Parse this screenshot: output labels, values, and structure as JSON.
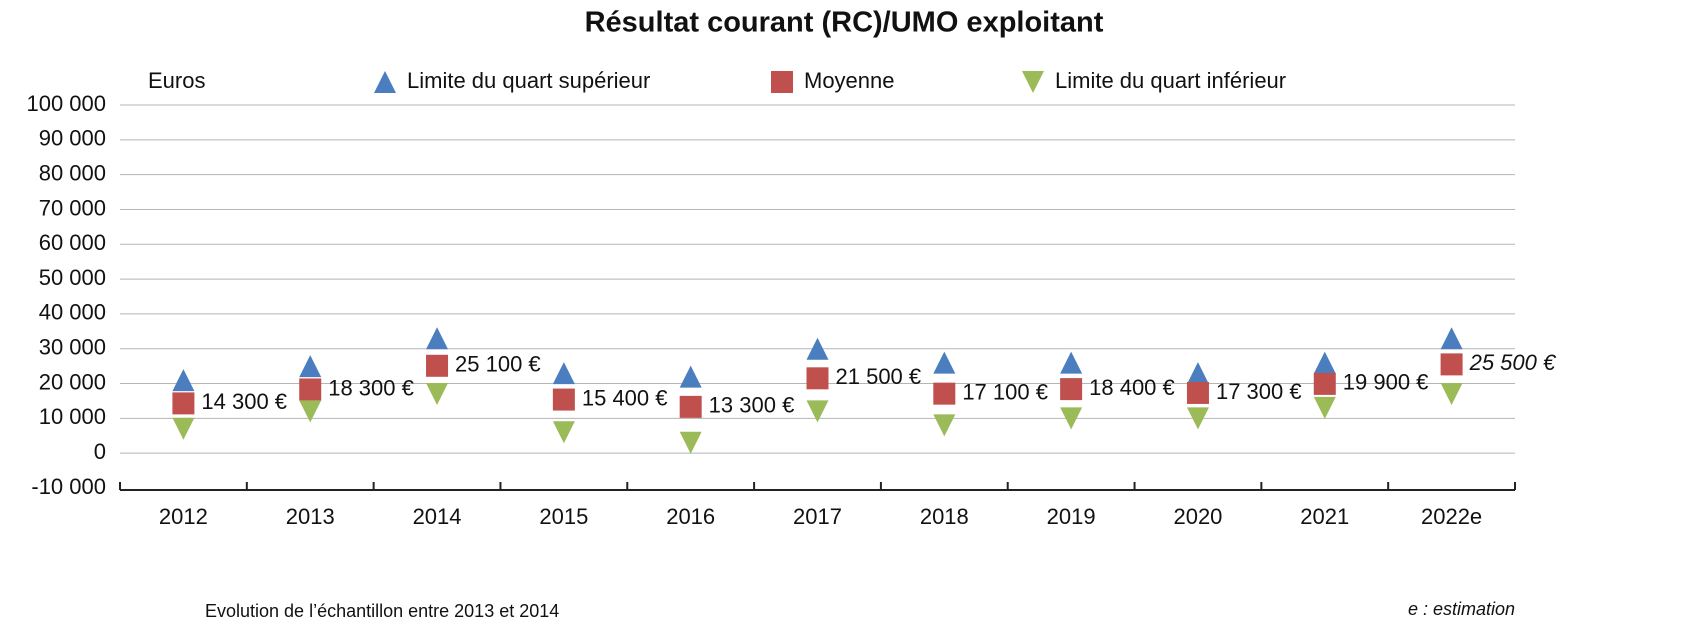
{
  "chart_data": {
    "type": "scatter",
    "title": "Résultat courant (RC)/UMO exploitant",
    "y_label": "Euros",
    "categories": [
      "2012",
      "2013",
      "2014",
      "2015",
      "2016",
      "2017",
      "2018",
      "2019",
      "2020",
      "2021",
      "2022e"
    ],
    "series": [
      {
        "name": "Limite du quart supérieur",
        "color": "#4a7ebf",
        "marker": "triangle-up",
        "values": [
          21000,
          25000,
          33000,
          23000,
          22000,
          30000,
          26000,
          26000,
          23000,
          26000,
          33000
        ]
      },
      {
        "name": "Moyenne",
        "color": "#c0504d",
        "marker": "square",
        "values": [
          14300,
          18300,
          25100,
          15400,
          13300,
          21500,
          17100,
          18400,
          17300,
          19900,
          25500
        ],
        "value_labels": [
          "14 300 €",
          "18 300 €",
          "25 100 €",
          "15 400 €",
          "13 300 €",
          "21 500 €",
          "17 100 €",
          "18 400 €",
          "17 300 €",
          "19 900 €",
          "25 500 €"
        ]
      },
      {
        "name": "Limite du quart inférieur",
        "color": "#9bbb59",
        "marker": "triangle-down",
        "values": [
          7000,
          12000,
          17000,
          6000,
          3000,
          12000,
          8000,
          10000,
          10000,
          13000,
          17000
        ]
      }
    ],
    "ylim": [
      -10000,
      100000
    ],
    "yticks": [
      {
        "value": -10000,
        "label": "-10 000"
      },
      0,
      {
        "value": 10000,
        "label": "10 000"
      },
      {
        "value": 20000,
        "label": "20 000"
      },
      {
        "value": 30000,
        "label": "30 000"
      },
      {
        "value": 40000,
        "label": "40 000"
      },
      {
        "value": 50000,
        "label": "50 000"
      },
      {
        "value": 60000,
        "label": "60 000"
      },
      {
        "value": 70000,
        "label": "70 000"
      },
      {
        "value": 80000,
        "label": "80 000"
      },
      {
        "value": 90000,
        "label": "90 000"
      },
      {
        "value": 100000,
        "label": "100 000"
      }
    ],
    "grid": true,
    "notes": [
      "Evolution de l’échantillon entre 2013 et 2014",
      "e : estimation"
    ]
  }
}
